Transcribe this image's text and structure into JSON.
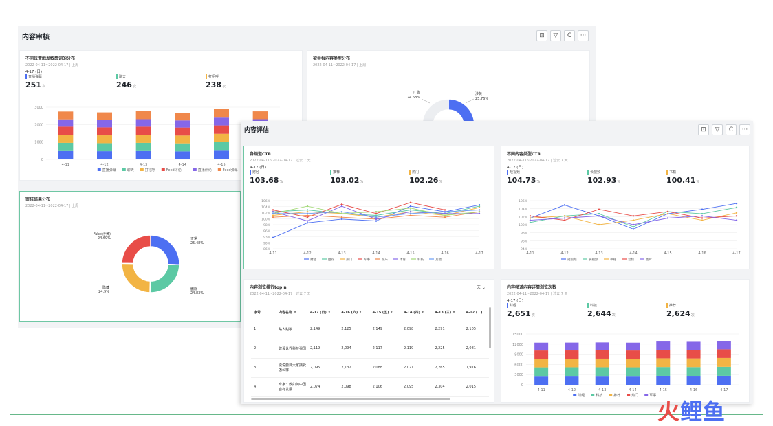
{
  "colors": {
    "blue": "#4d6ff2",
    "green": "#5cc9a4",
    "yellow": "#f2b444",
    "red": "#e84d48",
    "orange": "#f0884b",
    "purple": "#8567e8",
    "gray": "#9aa0a6"
  },
  "review": {
    "title": "内容审核",
    "toolbar": [
      "⊡",
      "▽",
      "C",
      "···"
    ],
    "card1": {
      "title": "不同位置触发敏感词的分布",
      "subtitle": "2022-04-11~2022-04-17 | 上周",
      "day": "4-17 (日)",
      "kpis": [
        {
          "label": "直播弹幕",
          "value": "251",
          "unit": "次",
          "color": "#4d6ff2"
        },
        {
          "label": "聊天",
          "value": "246",
          "unit": "次",
          "color": "#5cc9a4"
        },
        {
          "label": "打招呼",
          "value": "238",
          "unit": "次",
          "color": "#f2b444"
        }
      ]
    },
    "card2": {
      "title": "被举报内容类型分布",
      "subtitle": "2022-04-11~2022-04-17 | 上周",
      "slices": [
        {
          "name": "涉黄",
          "pct": "25.76%"
        },
        {
          "name": "广告",
          "pct": "24.68%"
        }
      ]
    },
    "card3": {
      "title": "审核结果分布",
      "subtitle": "2022-04-11~2022-04-17 | 上周",
      "slices": [
        {
          "name": "正常",
          "pct": "25.48%"
        },
        {
          "name": "删除",
          "pct": "24.83%"
        },
        {
          "name": "隐藏",
          "pct": "24.9%"
        },
        {
          "name": "Fake(涉黄)",
          "pct": "24.69%"
        }
      ]
    }
  },
  "eval": {
    "title": "内容评估",
    "toolbar": [
      "⊡",
      "▽",
      "C",
      "···"
    ],
    "ctr": {
      "title": "各频道CTR",
      "subtitle": "2022-04-11~2022-04-17 | 过去 7 天",
      "day": "4-17 (日)",
      "kpis": [
        {
          "label": "财经",
          "value": "103.68",
          "unit": "%",
          "color": "#4d6ff2"
        },
        {
          "label": "推荐",
          "value": "103.02",
          "unit": "%",
          "color": "#5cc9a4"
        },
        {
          "label": "热门",
          "value": "102.26",
          "unit": "%",
          "color": "#f2b444"
        }
      ]
    },
    "typectr": {
      "title": "不同内容类型CTR",
      "subtitle": "2022-04-11~2022-04-17 | 过去 7 天",
      "day": "4-17 (日)",
      "kpis": [
        {
          "label": "短视频",
          "value": "104.73",
          "unit": "%",
          "color": "#4d6ff2"
        },
        {
          "label": "长视频",
          "value": "102.93",
          "unit": "%",
          "color": "#5cc9a4"
        },
        {
          "label": "书籍",
          "value": "100.41",
          "unit": "%",
          "color": "#f2b444"
        }
      ]
    },
    "rank": {
      "title": "内容浏览排行top n",
      "subtitle": "2022-04-11~2022-04-17 | 过去 7 天",
      "unit": "天 ⌄",
      "headers": [
        "序号",
        "内容名称 ⇕",
        "4-17 (日) ⇕",
        "4-16 (六) ⇕",
        "4-15 (五) ⇕",
        "4-14 (四) ⇕",
        "4-13 (三) ⇕",
        "4-12 (二)"
      ],
      "rows": [
        [
          "1",
          "路人甜歌",
          "2,149",
          "2,125",
          "2,149",
          "2,098",
          "2,291",
          "2,105"
        ],
        [
          "2",
          "建设世界科技强国",
          "2,119",
          "2,094",
          "2,117",
          "2,119",
          "2,225",
          "2,081"
        ],
        [
          "3",
          "说说要目大家接受怎么样",
          "2,095",
          "2,132",
          "2,088",
          "2,021",
          "2,265",
          "1,976"
        ],
        [
          "4",
          "专家：教如何中国自有发展",
          "2,074",
          "2,098",
          "2,106",
          "2,095",
          "2,304",
          "2,015"
        ]
      ]
    },
    "chan": {
      "title": "内容频道内容详情浏览次数",
      "subtitle": "2022-04-11~2022-04-17 | 过去 7 天",
      "day": "4-17 (日)",
      "kpis": [
        {
          "label": "财经",
          "value": "2,651",
          "unit": "次",
          "color": "#4d6ff2"
        },
        {
          "label": "科技",
          "value": "2,644",
          "unit": "次",
          "color": "#5cc9a4"
        },
        {
          "label": "推荐",
          "value": "2,624",
          "unit": "次",
          "color": "#f2b444"
        }
      ]
    }
  },
  "chart_data": [
    {
      "type": "bar",
      "stacked": true,
      "categories": [
        "4-11",
        "4-12",
        "4-13",
        "4-14",
        "4-15",
        "4-16"
      ],
      "ylim": [
        0,
        3000
      ],
      "yticks": [
        "3000",
        "2000",
        "1000",
        "0"
      ],
      "series": [
        {
          "name": "直播弹幕",
          "color": "#4d6ff2",
          "values": [
            480,
            470,
            480,
            460,
            500,
            480
          ]
        },
        {
          "name": "聊天",
          "color": "#5cc9a4",
          "values": [
            470,
            460,
            470,
            460,
            490,
            470
          ]
        },
        {
          "name": "打招呼",
          "color": "#f2b444",
          "values": [
            460,
            450,
            460,
            450,
            480,
            460
          ]
        },
        {
          "name": "Feed评论",
          "color": "#e84d48",
          "values": [
            470,
            460,
            470,
            460,
            480,
            470
          ]
        },
        {
          "name": "直播评论",
          "color": "#8567e8",
          "values": [
            420,
            420,
            430,
            410,
            450,
            430
          ]
        },
        {
          "name": "Feed弹幕",
          "color": "#f0884b",
          "values": [
            450,
            440,
            460,
            430,
            510,
            450
          ]
        }
      ]
    },
    {
      "type": "pie",
      "series": [
        {
          "name": "涉黄",
          "value": 25.76,
          "color": "#4d6ff2"
        },
        {
          "name": "广告",
          "value": 24.68,
          "color": "#e84d48"
        },
        {
          "name": "其他",
          "value": 49.56,
          "color": "#eceef1"
        }
      ]
    },
    {
      "type": "pie",
      "series": [
        {
          "name": "正常",
          "value": 25.48,
          "color": "#4d6ff2"
        },
        {
          "name": "删除",
          "value": 24.83,
          "color": "#5cc9a4"
        },
        {
          "name": "隐藏",
          "value": 24.9,
          "color": "#f2b444"
        },
        {
          "name": "Fake(涉黄)",
          "value": 24.69,
          "color": "#e84d48"
        }
      ]
    },
    {
      "type": "line",
      "categories": [
        "4-11",
        "4-12",
        "4-13",
        "4-14",
        "4-15",
        "4-16",
        "4-17"
      ],
      "ylim": [
        80,
        106
      ],
      "yticks": [
        "106%",
        "104%",
        "102%",
        "100%",
        "98%",
        "96%",
        "93%",
        "90%",
        "86%"
      ],
      "series": [
        {
          "name": "财经",
          "color": "#4d6ff2",
          "values": [
            86,
            94,
            96,
            95,
            103,
            100,
            103.7
          ]
        },
        {
          "name": "推荐",
          "color": "#5cc9a4",
          "values": [
            100,
            101,
            99,
            98,
            101,
            99,
            103
          ]
        },
        {
          "name": "热门",
          "color": "#f2b444",
          "values": [
            98,
            100,
            99,
            97,
            100,
            98,
            102.3
          ]
        },
        {
          "name": "军事",
          "color": "#e84d48",
          "values": [
            101,
            97,
            104,
            99,
            105,
            101,
            101
          ]
        },
        {
          "name": "娱乐",
          "color": "#f0884b",
          "values": [
            97,
            98,
            97,
            96,
            98,
            97,
            100
          ]
        },
        {
          "name": "体育",
          "color": "#8567e8",
          "values": [
            100,
            95,
            103,
            96,
            100,
            99,
            99
          ]
        },
        {
          "name": "科技",
          "color": "#a3d977",
          "values": [
            99,
            103,
            99,
            100,
            102,
            98,
            100
          ]
        },
        {
          "name": "其他",
          "color": "#6a9cf5",
          "values": [
            99,
            99,
            100,
            97,
            99,
            100,
            101
          ]
        }
      ]
    },
    {
      "type": "line",
      "categories": [
        "4-11",
        "4-12",
        "4-13",
        "4-14",
        "4-15",
        "4-16",
        "4-17"
      ],
      "ylim": [
        84,
        106
      ],
      "yticks": [
        "106%",
        "104%",
        "102%",
        "100%",
        "98%",
        "96%",
        "94%"
      ],
      "series": [
        {
          "name": "短视频",
          "color": "#4d6ff2",
          "values": [
            98,
            104,
            99,
            93,
            100,
            102,
            104.7
          ]
        },
        {
          "name": "长视频",
          "color": "#5cc9a4",
          "values": [
            96,
            99,
            100,
            94,
            101,
            100,
            102.9
          ]
        },
        {
          "name": "书籍",
          "color": "#f2b444",
          "values": [
            98,
            99,
            95,
            97,
            100,
            97,
            100.4
          ]
        },
        {
          "name": "音频",
          "color": "#e84d48",
          "values": [
            99,
            97,
            102,
            99,
            101,
            98,
            99
          ]
        },
        {
          "name": "图片",
          "color": "#8567e8",
          "values": [
            97,
            98,
            99,
            95,
            98,
            99,
            97
          ]
        }
      ]
    },
    {
      "type": "bar",
      "stacked": true,
      "categories": [
        "4-11",
        "4-12",
        "4-13",
        "4-14",
        "4-15",
        "4-16",
        "4-17"
      ],
      "ylim": [
        0,
        15000
      ],
      "yticks": [
        "15000",
        "12000",
        "9000",
        "6000",
        "3000",
        "0"
      ],
      "series": [
        {
          "name": "财经",
          "color": "#4d6ff2",
          "values": [
            2600,
            2620,
            2610,
            2600,
            2640,
            2630,
            2651
          ]
        },
        {
          "name": "科技",
          "color": "#5cc9a4",
          "values": [
            2550,
            2560,
            2570,
            2560,
            2600,
            2590,
            2644
          ]
        },
        {
          "name": "推荐",
          "color": "#f2b444",
          "values": [
            2520,
            2510,
            2530,
            2520,
            2580,
            2560,
            2624
          ]
        },
        {
          "name": "热门",
          "color": "#e84d48",
          "values": [
            2450,
            2440,
            2460,
            2440,
            2520,
            2500,
            2540
          ]
        },
        {
          "name": "军事",
          "color": "#8567e8",
          "values": [
            2300,
            2310,
            2320,
            2300,
            2420,
            2400,
            2420
          ]
        }
      ]
    }
  ],
  "watermark": {
    "text1": "火",
    "text2": "鲤鱼",
    "color1": "#e84d48",
    "color2": "#4d6ff2"
  }
}
